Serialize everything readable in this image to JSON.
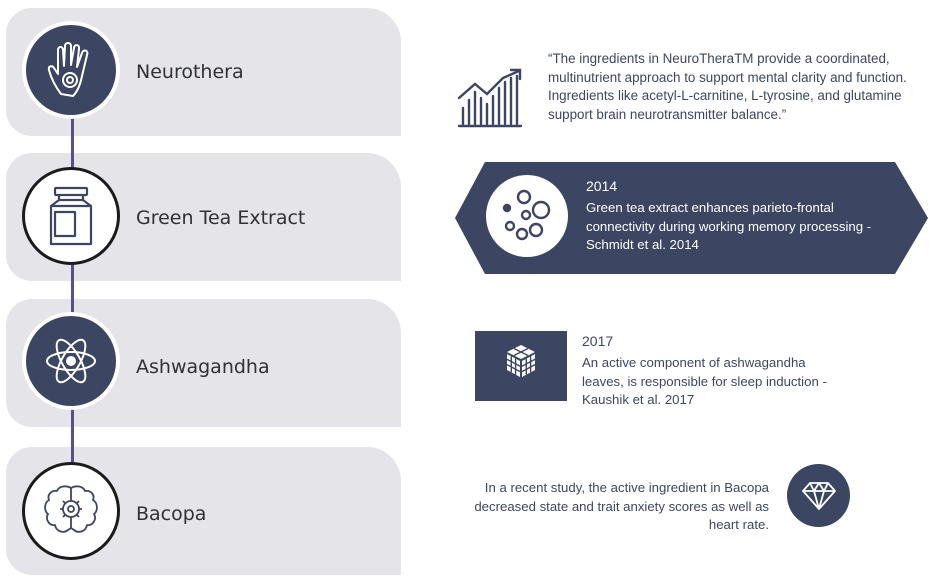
{
  "timeline": [
    {
      "label": "Neurothera",
      "icon": "hand-icon",
      "style": "dark"
    },
    {
      "label": "Green Tea Extract",
      "icon": "jar-icon",
      "style": "light"
    },
    {
      "label": "Ashwagandha",
      "icon": "atom-icon",
      "style": "dark"
    },
    {
      "label": "Bacopa",
      "icon": "brain-gear-icon",
      "style": "light"
    }
  ],
  "neurothera": {
    "quote": "“The ingredients in NeuroTheraTM provide a coordinated, multinutrient approach to support mental clarity and function. Ingredients like acetyl-L-carnitine, L-tyrosine, and glutamine support brain neurotransmitter balance.”",
    "icon": "growth-chart-icon"
  },
  "green_tea": {
    "year": "2014",
    "text": "Green tea extract enhances parieto-frontal connectivity during working memory processing - Schmidt et al. 2014",
    "icon": "bubbles-icon"
  },
  "ashwagandha": {
    "year": "2017",
    "text": "An active component of ashwagandha leaves, is responsible for sleep induction - Kaushik et al. 2017",
    "icon": "cube-icon"
  },
  "bacopa": {
    "text": "In a recent study, the active ingredient in Bacopa decreased state and trait anxiety scores as well as heart rate.",
    "icon": "diamond-icon"
  },
  "colors": {
    "navy": "#3c4663",
    "panel": "#e4e4e9",
    "connector": "#5b4e8c"
  }
}
